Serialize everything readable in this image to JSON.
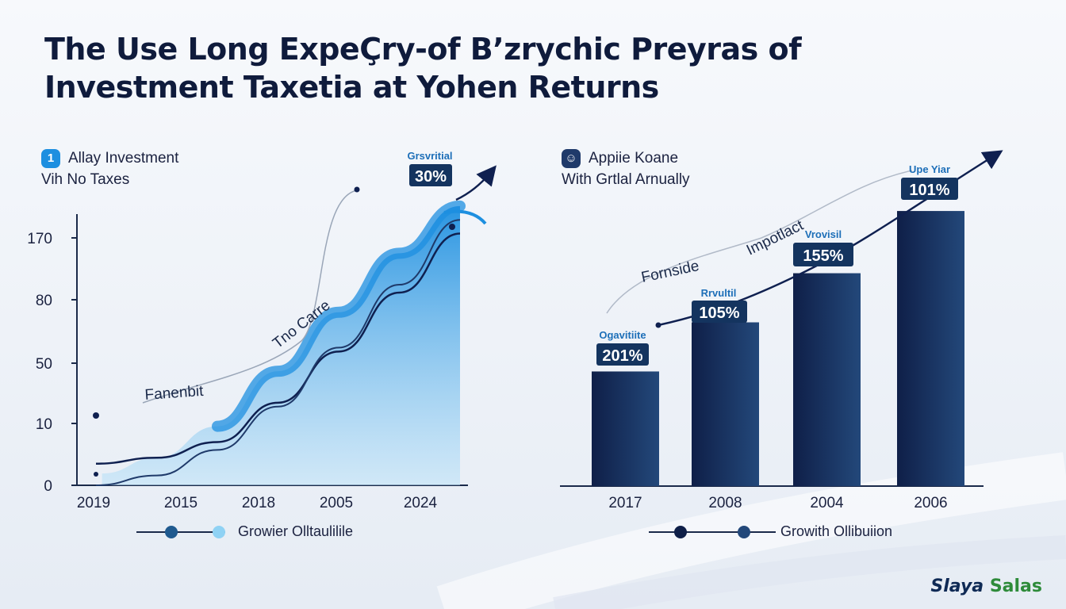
{
  "title": {
    "line1": "The Use Long ExpeÇry-of B’zrychic Preyras of",
    "line2": "Investment Taxetia at Yohen Returns"
  },
  "left_panel": {
    "icon_glyph": "1",
    "icon_name": "info-badge-icon",
    "subtitle_line1": "Allay Investment",
    "subtitle_line2": "Vih No Taxes",
    "legend_label": "Growier Olltaulilile"
  },
  "right_panel": {
    "icon_glyph": "☺",
    "icon_name": "person-badge-icon",
    "subtitle_line1": "Appiie Koane",
    "subtitle_line2": "With Grtlal Arnually",
    "legend_label": "Growith Ollibuiion"
  },
  "brand": {
    "part1": "Slaya",
    "part2": "Salas"
  },
  "colors": {
    "navy": "#0f2050",
    "dark_blue": "#1f3a6a",
    "bright_blue": "#1d8fe0",
    "light_blue": "#7cc6f0"
  },
  "chart_data": [
    {
      "type": "area",
      "title": "",
      "xlabel": "",
      "ylabel": "",
      "y_ticks": [
        "0",
        "10",
        "50",
        "80",
        "170"
      ],
      "x_ticks": [
        "2019",
        "2015",
        "2018",
        "2005",
        "2024"
      ],
      "series": [
        {
          "points": [
            [
              0,
              6
            ],
            [
              1,
              14
            ],
            [
              2,
              30
            ],
            [
              3,
              58
            ],
            [
              4,
              88
            ],
            [
              5,
              118
            ],
            [
              6,
              142
            ]
          ]
        },
        {
          "points": [
            [
              0,
              11
            ],
            [
              1,
              14
            ],
            [
              2,
              22
            ],
            [
              3,
              42
            ],
            [
              4,
              68
            ],
            [
              5,
              98
            ],
            [
              6,
              128
            ]
          ]
        },
        {
          "points": [
            [
              0,
              0
            ],
            [
              1,
              5
            ],
            [
              2,
              18
            ],
            [
              3,
              40
            ],
            [
              4,
              70
            ],
            [
              5,
              102
            ],
            [
              6,
              135
            ]
          ]
        }
      ],
      "annotations": [
        {
          "label": "Grsvritial",
          "value": "30%"
        },
        {
          "text": "Fanenbit"
        },
        {
          "text": "Tno Carre"
        }
      ]
    },
    {
      "type": "bar",
      "title": "",
      "xlabel": "",
      "ylabel": "",
      "categories": [
        "2017",
        "2008",
        "2004",
        "2006"
      ],
      "values": [
        35,
        50,
        65,
        84
      ],
      "ylim": [
        0,
        100
      ],
      "annotations": [
        {
          "label": "Ogavitiite",
          "value": "201%"
        },
        {
          "label": "Rrvultil",
          "value": "105%"
        },
        {
          "label": "Vrovisil",
          "value": "155%"
        },
        {
          "label": "Upe Yiar",
          "value": "101%"
        },
        {
          "text": "Fornside"
        },
        {
          "text": "Impotlact"
        }
      ]
    }
  ]
}
